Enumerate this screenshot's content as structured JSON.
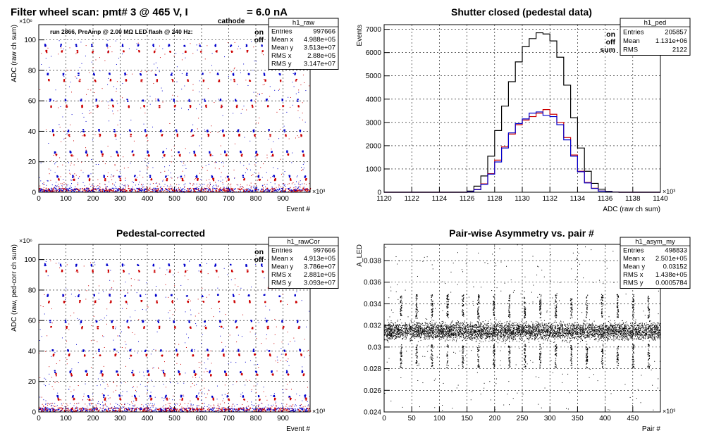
{
  "page": {
    "main_title_prefix": "Filter wheel scan: pmt#   3 @   465 V, I",
    "main_title_sub": "cathode",
    "main_title_suffix": " = 6.0 nA",
    "run_info": "run 2866, PreAmp @ 2.00 MΩ   LED flash @  240 Hz:"
  },
  "chart_data": [
    {
      "id": "raw",
      "type": "scatter",
      "title": "",
      "xlabel": "Event #",
      "ylabel": "ADC (raw ch sum)",
      "x_exponent": "×10³",
      "y_exponent": "×10⁶",
      "xlim": [
        0,
        1000
      ],
      "ylim": [
        0,
        110
      ],
      "xticks": [
        0,
        100,
        200,
        300,
        400,
        500,
        600,
        700,
        800,
        900
      ],
      "yticks": [
        0,
        20,
        40,
        60,
        80,
        100
      ],
      "grid": true,
      "legend": [
        "on",
        "off"
      ],
      "legend_colors": [
        "#0000cc",
        "#cc0000"
      ],
      "levels_on": [
        96,
        77,
        60,
        40,
        26,
        10
      ],
      "levels_off": [
        92,
        73,
        56,
        37,
        24,
        8
      ],
      "cycle_starts": [
        20,
        77,
        134,
        191,
        248,
        305,
        362,
        419,
        476,
        533,
        590,
        647,
        704,
        761,
        818,
        875,
        932
      ],
      "stats": {
        "name": "h1_raw",
        "rows": [
          [
            "Entries",
            "997666"
          ],
          [
            "Mean x",
            "4.988e+05"
          ],
          [
            "Mean y",
            "3.513e+07"
          ],
          [
            "RMS x",
            "2.88e+05"
          ],
          [
            "RMS y",
            "3.147e+07"
          ]
        ]
      }
    },
    {
      "id": "ped",
      "type": "line",
      "title": "Shutter closed (pedestal data)",
      "xlabel": "ADC (raw ch sum)",
      "ylabel": "Events",
      "x_exponent": "×10³",
      "xlim": [
        1120,
        1140
      ],
      "ylim": [
        0,
        7200
      ],
      "xticks": [
        1120,
        1122,
        1124,
        1126,
        1128,
        1130,
        1132,
        1134,
        1136,
        1138,
        1140
      ],
      "yticks": [
        0,
        1000,
        2000,
        3000,
        4000,
        5000,
        6000,
        7000
      ],
      "grid": true,
      "legend": [
        "on",
        "off",
        "sum"
      ],
      "legend_colors": [
        "#0000cc",
        "#cc0000",
        "#000000"
      ],
      "stats": {
        "name": "h1_ped",
        "rows": [
          [
            "Entries",
            "205857"
          ],
          [
            "Mean",
            "1.131e+06"
          ],
          [
            "RMS",
            "2122"
          ]
        ]
      },
      "series": [
        {
          "name": "sum",
          "color": "#000000",
          "x": [
            1126.0,
            1126.5,
            1127.0,
            1127.5,
            1128.0,
            1128.5,
            1129.0,
            1129.5,
            1130.0,
            1130.5,
            1131.0,
            1131.5,
            1132.0,
            1132.5,
            1133.0,
            1133.5,
            1134.0,
            1134.5,
            1135.0,
            1135.5,
            1136.0,
            1136.5
          ],
          "values": [
            50,
            260,
            700,
            1550,
            2650,
            3700,
            4750,
            5600,
            6250,
            6600,
            6850,
            6800,
            6500,
            5800,
            4600,
            3200,
            1900,
            900,
            380,
            130,
            40,
            10
          ]
        },
        {
          "name": "off",
          "color": "#cc0000",
          "x": [
            1126.0,
            1126.5,
            1127.0,
            1127.5,
            1128.0,
            1128.5,
            1129.0,
            1129.5,
            1130.0,
            1130.5,
            1131.0,
            1131.5,
            1132.0,
            1132.5,
            1133.0,
            1133.5,
            1134.0,
            1134.5,
            1135.0,
            1135.5,
            1136.0,
            1136.5
          ],
          "values": [
            20,
            120,
            360,
            800,
            1380,
            1950,
            2500,
            2900,
            3100,
            3250,
            3400,
            3550,
            3350,
            3000,
            2350,
            1600,
            900,
            420,
            170,
            50,
            15,
            5
          ]
        },
        {
          "name": "on",
          "color": "#0000cc",
          "x": [
            1126.0,
            1126.5,
            1127.0,
            1127.5,
            1128.0,
            1128.5,
            1129.0,
            1129.5,
            1130.0,
            1130.5,
            1131.0,
            1131.5,
            1132.0,
            1132.5,
            1133.0,
            1133.5,
            1134.0,
            1134.5,
            1135.0,
            1135.5,
            1136.0,
            1136.5
          ],
          "values": [
            20,
            110,
            340,
            780,
            1300,
            1900,
            2550,
            2950,
            3150,
            3400,
            3450,
            3300,
            3250,
            2900,
            2250,
            1550,
            880,
            400,
            160,
            50,
            15,
            5
          ]
        }
      ]
    },
    {
      "id": "rawcor",
      "type": "scatter",
      "title": "Pedestal-corrected",
      "xlabel": "Event #",
      "ylabel": "ADC (raw, ped-corr ch sum)",
      "x_exponent": "×10³",
      "y_exponent": "×10⁶",
      "xlim": [
        0,
        1000
      ],
      "ylim": [
        0,
        110
      ],
      "xticks": [
        0,
        100,
        200,
        300,
        400,
        500,
        600,
        700,
        800,
        900
      ],
      "yticks": [
        0,
        20,
        40,
        60,
        80,
        100
      ],
      "grid": true,
      "legend": [
        "on",
        "off"
      ],
      "legend_colors": [
        "#0000cc",
        "#cc0000"
      ],
      "levels_on": [
        96,
        76,
        59,
        40,
        26,
        10
      ],
      "levels_off": [
        92,
        72,
        55,
        37,
        24,
        8
      ],
      "cycle_starts": [
        20,
        77,
        134,
        191,
        248,
        305,
        362,
        419,
        476,
        533,
        590,
        647,
        704,
        761,
        818,
        875,
        932
      ],
      "stats": {
        "name": "h1_rawCor",
        "rows": [
          [
            "Entries",
            "997666"
          ],
          [
            "Mean x",
            "4.913e+05"
          ],
          [
            "Mean y",
            "3.786e+07"
          ],
          [
            "RMS x",
            "2.881e+05"
          ],
          [
            "RMS y",
            "3.093e+07"
          ]
        ]
      }
    },
    {
      "id": "asym",
      "type": "scatter",
      "title": "Pair-wise Asymmetry vs. pair #",
      "xlabel": "Pair #",
      "ylabel": "A_LED",
      "x_exponent": "×10³",
      "xlim": [
        0,
        500
      ],
      "ylim": [
        0.024,
        0.0395
      ],
      "xticks": [
        0,
        50,
        100,
        150,
        200,
        250,
        300,
        350,
        400,
        450
      ],
      "yticks": [
        0.024,
        0.026,
        0.028,
        0.03,
        0.032,
        0.034,
        0.036,
        0.038
      ],
      "ytick_labels": [
        "0.024",
        "0.026",
        "0.028",
        "0.03",
        "0.032",
        "0.034",
        "0.036",
        "0.038"
      ],
      "grid": true,
      "band_center": 0.0315,
      "band_halfwidth": 0.0012,
      "spike_x": [
        30,
        58,
        86,
        114,
        142,
        170,
        198,
        226,
        254,
        282,
        310,
        338,
        366,
        394,
        422,
        450,
        478
      ],
      "stats": {
        "name": "h1_asym_my",
        "rows": [
          [
            "Entries",
            "498833"
          ],
          [
            "Mean x",
            "2.501e+05"
          ],
          [
            "Mean y",
            "0.03152"
          ],
          [
            "RMS x",
            "1.438e+05"
          ],
          [
            "RMS y",
            "0.0005784"
          ]
        ]
      }
    }
  ]
}
